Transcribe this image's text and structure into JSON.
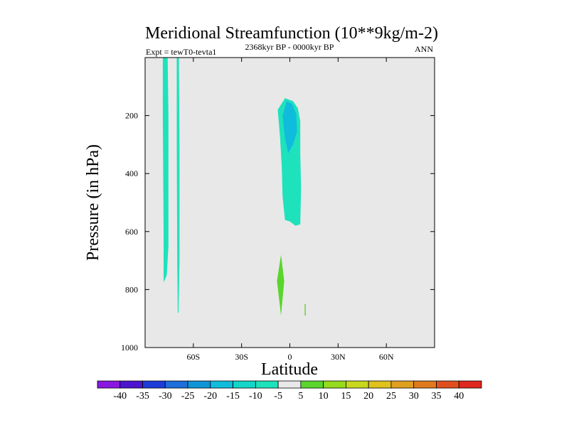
{
  "chart_data": {
    "type": "contour",
    "title": "Meridional Streamfunction (10**9kg/m-2)",
    "subtitle_left": "Expt = tewT0-tevta1",
    "subtitle_center": "2368kyr BP - 0000kyr BP",
    "subtitle_right": "ANN",
    "xlabel": "Latitude",
    "ylabel": "Pressure (in hPa)",
    "xlim": [
      -90,
      90
    ],
    "ylim": [
      0,
      1000
    ],
    "y_inverted": true,
    "x_ticks": [
      {
        "value": -60,
        "label": "60S"
      },
      {
        "value": -30,
        "label": "30S"
      },
      {
        "value": 0,
        "label": "0"
      },
      {
        "value": 30,
        "label": "30N"
      },
      {
        "value": 60,
        "label": "60N"
      }
    ],
    "y_ticks": [
      {
        "value": 200,
        "label": "200"
      },
      {
        "value": 400,
        "label": "400"
      },
      {
        "value": 600,
        "label": "600"
      },
      {
        "value": 800,
        "label": "800"
      },
      {
        "value": 1000,
        "label": "1000"
      }
    ],
    "background_color": "#e8e8e8",
    "regions": [
      {
        "name": "southern-polar-band-1",
        "level": -7.5,
        "color": "#1ee2bc",
        "polygon": [
          [
            -79,
            0
          ],
          [
            -76,
            0
          ],
          [
            -75.5,
            200
          ],
          [
            -75.5,
            650
          ],
          [
            -76.5,
            750
          ],
          [
            -78.5,
            775
          ],
          [
            -78.5,
            600
          ],
          [
            -79,
            200
          ]
        ]
      },
      {
        "name": "southern-polar-band-2",
        "level": -7.5,
        "color": "#1ee2bc",
        "polygon": [
          [
            -70.3,
            0
          ],
          [
            -69,
            0
          ],
          [
            -68.6,
            300
          ],
          [
            -68.6,
            700
          ],
          [
            -69.2,
            880
          ],
          [
            -69.7,
            880
          ],
          [
            -70,
            700
          ],
          [
            -70.3,
            300
          ]
        ]
      },
      {
        "name": "equatorial-upper-cell",
        "level": -7.5,
        "color": "#1ee2bc",
        "polygon": [
          [
            -7.5,
            180
          ],
          [
            -3,
            140
          ],
          [
            2,
            150
          ],
          [
            5,
            175
          ],
          [
            6.5,
            220
          ],
          [
            6.5,
            330
          ],
          [
            7,
            450
          ],
          [
            6.5,
            575
          ],
          [
            3.5,
            580
          ],
          [
            0,
            565
          ],
          [
            -3,
            560
          ],
          [
            -4.5,
            480
          ],
          [
            -5,
            380
          ],
          [
            -6,
            280
          ]
        ]
      },
      {
        "name": "equatorial-upper-core",
        "level": -12.5,
        "color": "#10bcdc",
        "polygon": [
          [
            -4.5,
            200
          ],
          [
            -2,
            150
          ],
          [
            1.5,
            160
          ],
          [
            4,
            195
          ],
          [
            4.5,
            255
          ],
          [
            2,
            300
          ],
          [
            -1,
            330
          ],
          [
            -3,
            280
          ]
        ]
      },
      {
        "name": "equatorial-lower-cell",
        "level": 7.5,
        "color": "#5ad52d",
        "polygon": [
          [
            -8,
            770
          ],
          [
            -5.5,
            680
          ],
          [
            -3.5,
            770
          ],
          [
            -5.5,
            890
          ]
        ]
      },
      {
        "name": "north-surface-sliver",
        "level": 7.5,
        "color": "#5ad52d",
        "polygon": [
          [
            9.2,
            850
          ],
          [
            9.8,
            850
          ],
          [
            9.9,
            890
          ],
          [
            9.3,
            890
          ]
        ]
      }
    ],
    "colorbar": {
      "labels": [
        "-40",
        "-35",
        "-30",
        "-25",
        "-20",
        "-15",
        "-10",
        "-5",
        "5",
        "10",
        "15",
        "20",
        "25",
        "30",
        "35",
        "40"
      ],
      "colors": [
        "#8a17e0",
        "#4c14cf",
        "#1e3cd8",
        "#1e6edc",
        "#1094d8",
        "#10bcdc",
        "#14d6c8",
        "#1ee2bc",
        "#e8e8e8",
        "#5ad52d",
        "#96db1e",
        "#c8d81e",
        "#e0c11e",
        "#e0a01e",
        "#e07a1e",
        "#e0501e",
        "#e0281e"
      ]
    }
  }
}
